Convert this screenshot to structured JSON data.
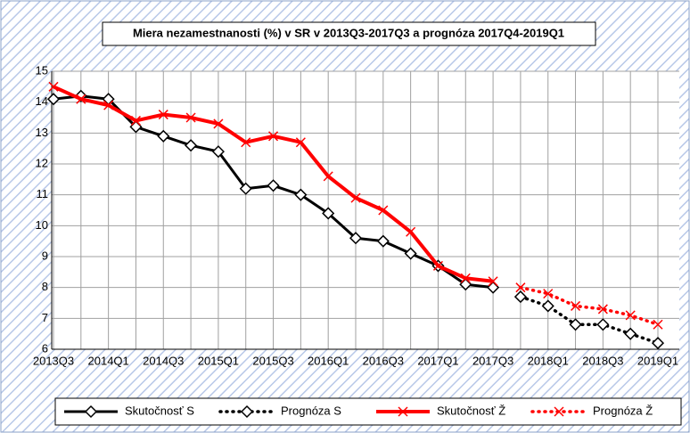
{
  "chart_data": {
    "type": "line",
    "title": "Miera nezamestnanosti (%) v SR v 2013Q3-2017Q3 a prognóza 2017Q4-2019Q1",
    "categories": [
      "2013Q3",
      null,
      "2014Q1",
      null,
      "2014Q3",
      null,
      "2015Q1",
      null,
      "2015Q3",
      null,
      "2016Q1",
      null,
      "2016Q3",
      null,
      "2017Q1",
      null,
      "2017Q3",
      null,
      "2018Q1",
      null,
      "2018Q3",
      null,
      "2019Q1"
    ],
    "series": [
      {
        "name": "Skutočnosť S",
        "color": "#000000",
        "line_style": "solid",
        "marker": "diamond",
        "values": [
          14.1,
          14.2,
          14.1,
          13.2,
          12.9,
          12.6,
          12.4,
          11.2,
          11.3,
          11.0,
          10.4,
          9.6,
          9.5,
          9.1,
          8.7,
          8.1,
          8.0,
          null,
          null,
          null,
          null,
          null,
          null
        ]
      },
      {
        "name": "Prognóza S",
        "color": "#000000",
        "line_style": "dotted",
        "marker": "diamond",
        "values": [
          null,
          null,
          null,
          null,
          null,
          null,
          null,
          null,
          null,
          null,
          null,
          null,
          null,
          null,
          null,
          null,
          null,
          7.7,
          7.4,
          6.8,
          6.8,
          6.5,
          6.2
        ]
      },
      {
        "name": "Skutočnosť Ž",
        "color": "#ff0000",
        "line_style": "solid",
        "marker": "x",
        "values": [
          14.5,
          14.1,
          13.9,
          13.4,
          13.6,
          13.5,
          13.3,
          12.7,
          12.9,
          12.7,
          11.6,
          10.9,
          10.5,
          9.8,
          8.7,
          8.3,
          8.2,
          null,
          null,
          null,
          null,
          null,
          null
        ]
      },
      {
        "name": "Prognóza Ž",
        "color": "#ff0000",
        "line_style": "dotted",
        "marker": "x",
        "values": [
          null,
          null,
          null,
          null,
          null,
          null,
          null,
          null,
          null,
          null,
          null,
          null,
          null,
          null,
          null,
          null,
          null,
          8.0,
          7.8,
          7.4,
          7.3,
          7.1,
          6.8
        ]
      }
    ],
    "ylim": [
      6,
      15
    ],
    "yticks": [
      6,
      7,
      8,
      9,
      10,
      11,
      12,
      13,
      14,
      15
    ],
    "grid": true,
    "legend": "bottom"
  }
}
